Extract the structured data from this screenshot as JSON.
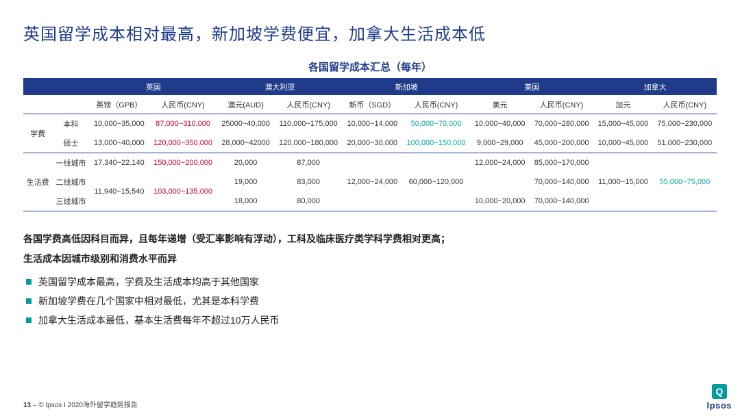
{
  "title": "英国留学成本相对最高，新加坡学费便宜，加拿大生活成本低",
  "subtitle": "各国留学成本汇总（每年）",
  "colors": {
    "brand": "#1f3b8a",
    "accent_red": "#d4002a",
    "accent_teal": "#00a79d",
    "bullet": "#009b9f"
  },
  "table": {
    "countries": [
      "英国",
      "澳大利亚",
      "新加坡",
      "美国",
      "加拿大"
    ],
    "currencies": [
      [
        "英镑（GPB）",
        "人民币(CNY)"
      ],
      [
        "澳元(AUD)",
        "人民币(CNY)"
      ],
      [
        "新币（SGD）",
        "人民币(CNY)"
      ],
      [
        "美元",
        "人民币(CNY)"
      ],
      [
        "加元",
        "人民币(CNY)"
      ]
    ],
    "groups": [
      {
        "label": "学费",
        "rows": [
          {
            "label": "本科",
            "cells": [
              {
                "v": "10,000~35,000"
              },
              {
                "v": "87,000~310,000",
                "c": "red"
              },
              {
                "v": "25000~40,000"
              },
              {
                "v": "110,000~175,000"
              },
              {
                "v": "10,000~14,000"
              },
              {
                "v": "50,000~70,000",
                "c": "teal"
              },
              {
                "v": "10,000~40,000"
              },
              {
                "v": "70,000~280,000"
              },
              {
                "v": "15,000~45,000"
              },
              {
                "v": "75,000~230,000"
              }
            ]
          },
          {
            "label": "硕士",
            "cells": [
              {
                "v": "13,000~40,000"
              },
              {
                "v": "120,000~350,000",
                "c": "red"
              },
              {
                "v": "28,000~42000"
              },
              {
                "v": "120,000~180,000"
              },
              {
                "v": "20,000~30,000"
              },
              {
                "v": "100,000~150,000",
                "c": "teal"
              },
              {
                "v": "9,000~29,000"
              },
              {
                "v": "45,000~200,000"
              },
              {
                "v": "10,000~45,000"
              },
              {
                "v": "51,000~230,000"
              }
            ]
          }
        ]
      },
      {
        "label": "生活费",
        "rows": [
          {
            "label": "一线城市",
            "cells": [
              {
                "v": "17,340~22,140"
              },
              {
                "v": "150,000~200,000",
                "c": "red"
              },
              {
                "v": "20,000"
              },
              {
                "v": "87,000"
              },
              {
                "v": ""
              },
              {
                "v": ""
              },
              {
                "v": "12,000~24,000"
              },
              {
                "v": "85,000~170,000"
              },
              {
                "v": ""
              },
              {
                "v": ""
              }
            ]
          },
          {
            "label": "二线城市",
            "cells": [
              {
                "v": "11,940~15,540",
                "rs": 2
              },
              {
                "v": "103,000~135,000",
                "c": "red",
                "rs": 2
              },
              {
                "v": "19,000"
              },
              {
                "v": "83,000"
              },
              {
                "v": "12,000~24,000"
              },
              {
                "v": "60,000~120,000"
              },
              {
                "v": ""
              },
              {
                "v": "70,000~140,000"
              },
              {
                "v": "11,000~15,000"
              },
              {
                "v": "55,000~75,000",
                "c": "teal"
              }
            ]
          },
          {
            "label": "三线城市",
            "cells": [
              {
                "v": "18,000"
              },
              {
                "v": "80,000"
              },
              {
                "v": ""
              },
              {
                "v": ""
              },
              {
                "v": "10,000~20,000"
              },
              {
                "v": "70,000~140,000"
              },
              {
                "v": ""
              },
              {
                "v": ""
              }
            ]
          }
        ]
      }
    ]
  },
  "notes": {
    "line1": "各国学费高低因科目而异，且每年递增（受汇率影响有浮动），工科及临床医疗类学科学费相对更高；",
    "line2": "生活成本因城市级别和消费水平而异",
    "bullets": [
      "英国留学成本最高，学费及生活成本均高于其他国家",
      "新加坡学费在几个国家中相对最低，尤其是本科学费",
      "加拿大生活成本最低，基本生活费每年不超过10万人民币"
    ]
  },
  "footer": {
    "page": "13",
    "sep": "–",
    "copyright": "© Ipsos I 2020海外留学趋势报告"
  },
  "logo": {
    "mark": "Q",
    "name": "Ipsos"
  }
}
